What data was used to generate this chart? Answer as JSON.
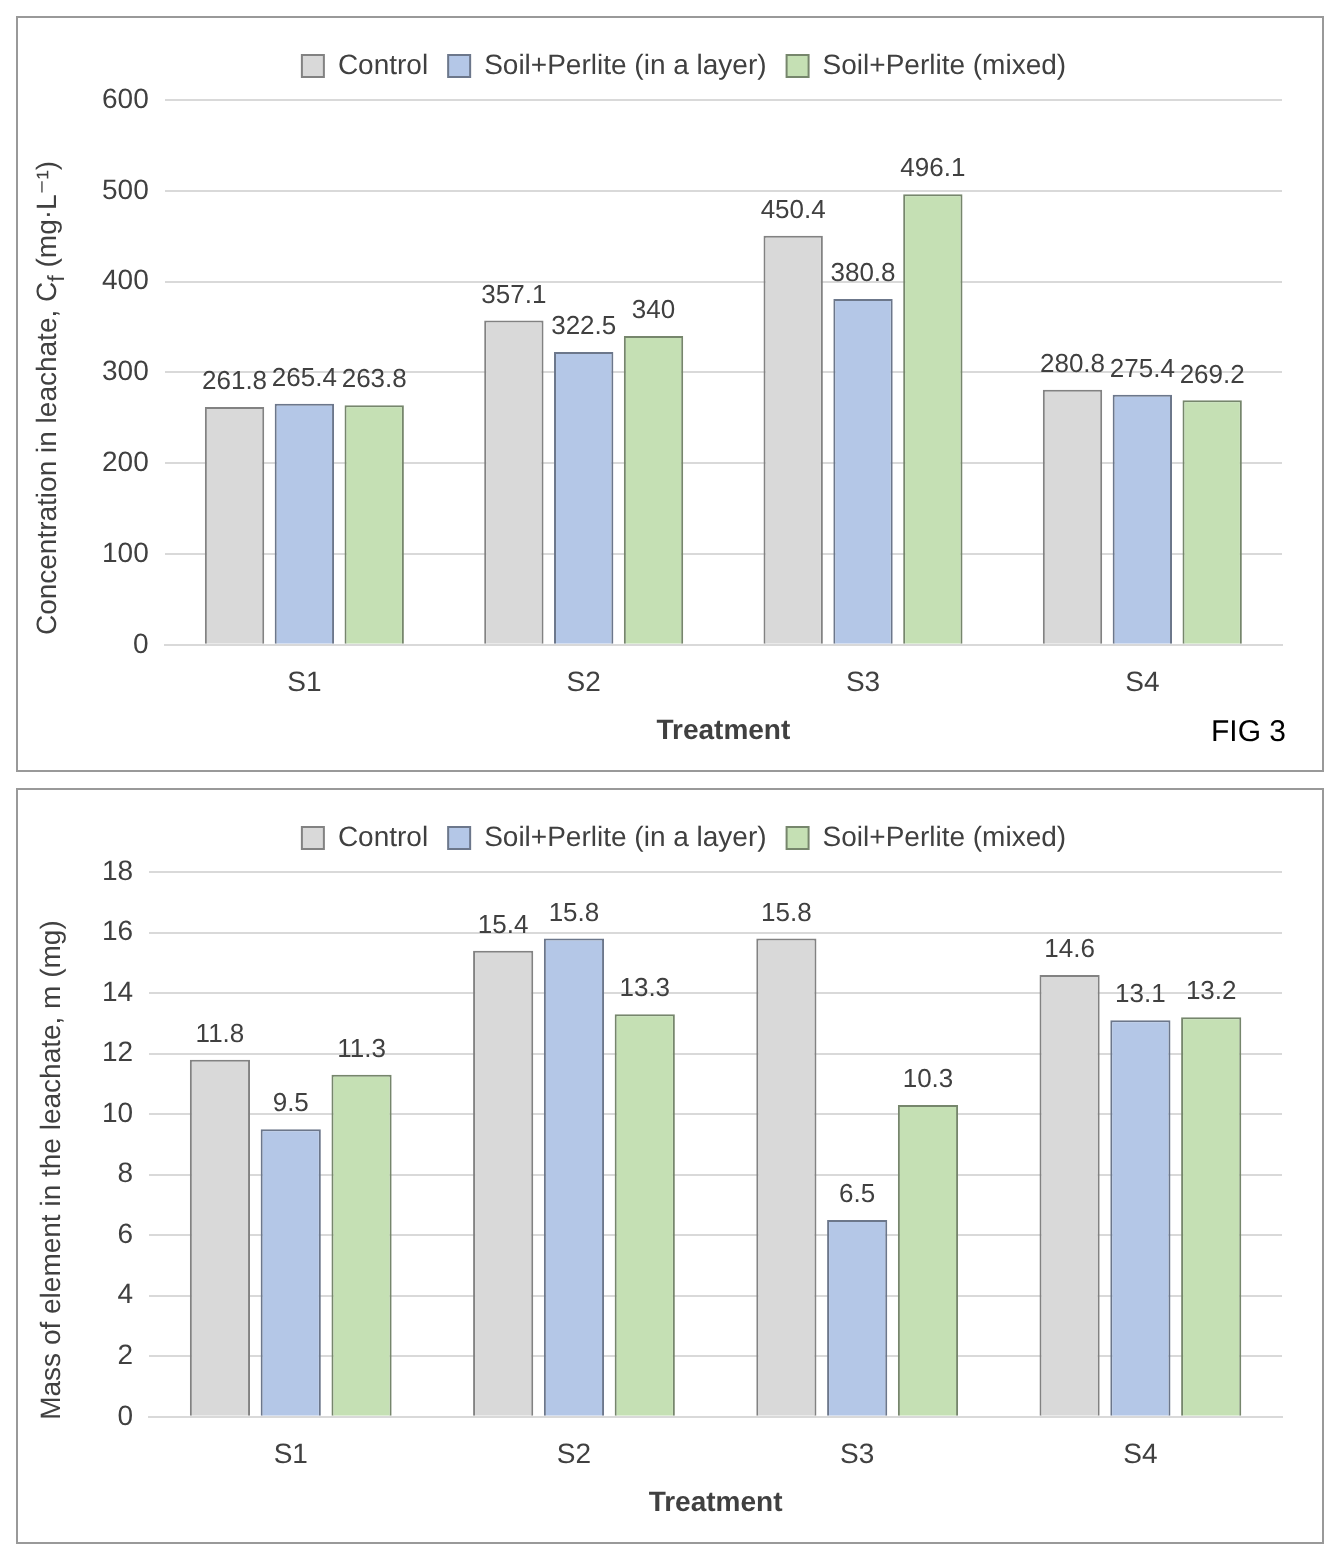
{
  "chart_data": [
    {
      "type": "bar",
      "categories": [
        "S1",
        "S2",
        "S3",
        "S4"
      ],
      "xlabel": "Treatment",
      "ylabel": "Concentration in leachate, C$_{f}$ (mg·L⁻¹)",
      "series": [
        {
          "name": "Control",
          "color": "#d9d9d9",
          "values": [
            261.8,
            357.1,
            450.4,
            280.8
          ]
        },
        {
          "name": "Soil+Perlite (in a layer)",
          "color": "#b4c7e7",
          "values": [
            265.4,
            322.5,
            380.8,
            275.4
          ]
        },
        {
          "name": "Soil+Perlite (mixed)",
          "color": "#c5e0b4",
          "values": [
            263.8,
            340,
            496.1,
            269.2
          ]
        }
      ],
      "ylim": [
        0,
        600
      ],
      "yticks": [
        0,
        100,
        200,
        300,
        400,
        500,
        600
      ],
      "grid": "y",
      "legend": "top",
      "data_labels": true,
      "annotations": [
        "FIG 3"
      ]
    },
    {
      "type": "bar",
      "categories": [
        "S1",
        "S2",
        "S3",
        "S4"
      ],
      "xlabel": "Treatment",
      "ylabel": "Mass of element in the leachate, m (mg)",
      "series": [
        {
          "name": "Control",
          "color": "#d9d9d9",
          "values": [
            11.8,
            15.4,
            15.8,
            14.6
          ]
        },
        {
          "name": "Soil+Perlite (in a layer)",
          "color": "#b4c7e7",
          "values": [
            9.5,
            15.8,
            6.5,
            13.1
          ]
        },
        {
          "name": "Soil+Perlite (mixed)",
          "color": "#c5e0b4",
          "values": [
            11.3,
            13.3,
            10.3,
            13.2
          ]
        }
      ],
      "ylim": [
        0,
        18
      ],
      "yticks": [
        0,
        2,
        4,
        6,
        8,
        10,
        12,
        14,
        16,
        18
      ],
      "grid": "y",
      "legend": "top",
      "data_labels": true
    }
  ]
}
